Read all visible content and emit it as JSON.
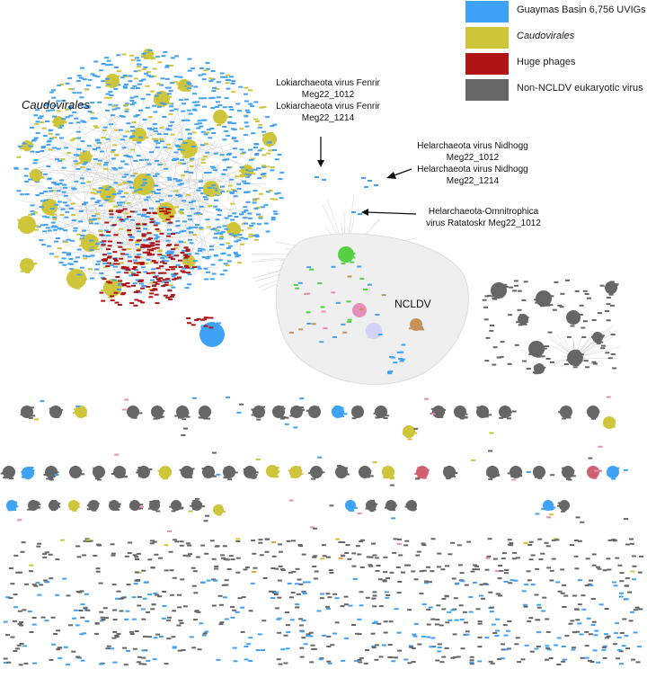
{
  "legend": [
    {
      "label": "Guaymas Basin 6,756 UVIGs",
      "color": "#3fa2f5",
      "italic": false
    },
    {
      "label": "Caudovirales",
      "color": "#cfc53a",
      "italic": true
    },
    {
      "label": "Huge phages",
      "color": "#b01415",
      "italic": false
    },
    {
      "label": "Non-NCLDV eukaryotic virus",
      "color": "#666666",
      "italic": false
    }
  ],
  "labels": {
    "caudovirales": "Caudovirales",
    "ncldv": "NCLDV",
    "fenrir_1": "Lokiarchaeota virus Fenrir",
    "fenrir_1_id": "Meg22_1012",
    "fenrir_2": "Lokiarchaeota virus Fenrir",
    "fenrir_2_id": "Meg22_1214",
    "nidhogg_1": "Helarchaeota virus Nidhogg",
    "nidhogg_1_id": "Meg22_1012",
    "nidhogg_2": "Helarchaeota virus Nidhogg",
    "nidhogg_2_id": "Meg22_1214",
    "ratatoskr_1": "Helarchaeota-Omnitrophica",
    "ratatoskr_2": "virus Ratatoskr Meg22_1012"
  },
  "colors": {
    "blue": "#3fa2f5",
    "yellow": "#cfc53a",
    "red": "#b01415",
    "gray": "#666666",
    "pink": "#e48fb9",
    "green": "#55d044",
    "tan": "#c4925a",
    "lavender": "#d2d3f7",
    "orange": "#f2a13a",
    "rose": "#d06070",
    "ncldv_bg": "#f0f0f0"
  }
}
